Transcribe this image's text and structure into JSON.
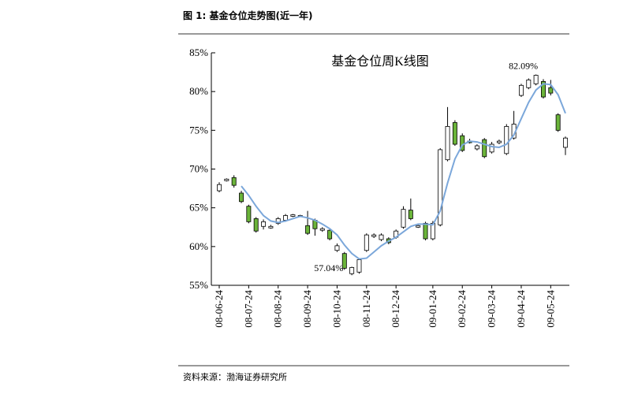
{
  "header": {
    "title": "图 1:  基金仓位走势图(近一年)"
  },
  "source": "资料来源：渤海证券研究所",
  "chart_data": {
    "type": "candlestick",
    "title": "基金仓位周K线图",
    "categories": [
      "08-06-24",
      null,
      null,
      null,
      "08-07-24",
      null,
      null,
      null,
      "08-08-24",
      null,
      null,
      null,
      "08-09-24",
      null,
      null,
      null,
      "08-10-24",
      null,
      null,
      null,
      "08-11-24",
      null,
      null,
      null,
      "08-12-24",
      null,
      null,
      null,
      null,
      "09-01-24",
      null,
      null,
      null,
      "09-02-24",
      null,
      null,
      null,
      "09-03-24",
      null,
      null,
      null,
      "09-04-24",
      null,
      null,
      null,
      "09-05-24",
      null,
      null
    ],
    "open": [
      67.2,
      68.5,
      68.9,
      66.9,
      65.2,
      63.6,
      62.6,
      62.4,
      63.0,
      63.4,
      63.9,
      63.9,
      62.7,
      63.4,
      62.1,
      62.1,
      59.5,
      59.1,
      56.5,
      56.7,
      59.5,
      61.3,
      60.9,
      61.0,
      61.2,
      62.5,
      64.7,
      62.5,
      63.0,
      61.0,
      62.8,
      71.2,
      76.0,
      74.3,
      73.6,
      72.6,
      73.8,
      72.2,
      73.4,
      72.0,
      74.0,
      79.5,
      80.5,
      81.0,
      81.3,
      80.5,
      77.0,
      72.8
    ],
    "high": [
      68.3,
      68.8,
      69.2,
      67.2,
      65.4,
      63.8,
      63.5,
      62.8,
      63.8,
      64.2,
      64.2,
      64.1,
      64.6,
      63.6,
      62.5,
      62.3,
      60.4,
      59.3,
      57.4,
      58.5,
      61.7,
      61.7,
      61.7,
      61.2,
      62.2,
      65.2,
      66.2,
      62.8,
      63.2,
      63.3,
      72.7,
      78.0,
      76.3,
      74.6,
      73.9,
      73.2,
      74.0,
      73.5,
      73.8,
      75.8,
      77.5,
      81.0,
      81.7,
      82.2,
      81.6,
      81.5,
      77.2,
      74.2
    ],
    "low": [
      67.0,
      68.4,
      67.6,
      65.6,
      63.0,
      61.8,
      62.2,
      62.3,
      62.8,
      63.2,
      63.8,
      63.8,
      61.5,
      61.4,
      61.9,
      60.8,
      59.3,
      57.0,
      56.3,
      56.5,
      59.3,
      61.1,
      60.7,
      60.3,
      61.0,
      62.3,
      63.4,
      62.4,
      60.8,
      60.8,
      62.6,
      71.0,
      73.0,
      72.2,
      73.3,
      72.4,
      71.4,
      72.0,
      73.2,
      71.8,
      73.8,
      79.3,
      80.3,
      80.8,
      79.1,
      79.5,
      74.8,
      71.8
    ],
    "close": [
      68.0,
      68.7,
      67.9,
      65.8,
      63.2,
      62.0,
      63.2,
      62.6,
      63.6,
      64.0,
      64.1,
      64.0,
      61.7,
      62.3,
      62.3,
      61.0,
      60.1,
      57.2,
      57.3,
      58.3,
      61.5,
      61.5,
      61.5,
      60.5,
      62.0,
      64.8,
      63.6,
      62.7,
      61.0,
      63.0,
      72.5,
      75.5,
      73.2,
      72.4,
      73.4,
      73.0,
      71.6,
      73.2,
      73.6,
      75.5,
      75.8,
      80.8,
      81.5,
      82.1,
      79.3,
      79.8,
      75.0,
      74.0
    ],
    "ma": [
      null,
      null,
      null,
      67.8,
      66.6,
      65.2,
      64.0,
      63.3,
      63.1,
      63.3,
      63.6,
      63.9,
      63.7,
      63.4,
      62.9,
      62.3,
      61.5,
      60.2,
      59.1,
      58.4,
      58.5,
      59.3,
      60.1,
      60.7,
      61.2,
      61.9,
      62.6,
      62.9,
      62.9,
      62.8,
      64.6,
      68.2,
      71.3,
      73.1,
      73.6,
      73.5,
      73.2,
      72.9,
      72.8,
      73.2,
      74.4,
      76.5,
      78.6,
      80.2,
      81.0,
      80.9,
      79.6,
      77.2
    ],
    "up_color": "#ffffff",
    "down_color": "#6bb43a",
    "ma_color": "#7ba7da",
    "ylim": [
      55,
      85
    ],
    "yticks": [
      {
        "value": 55,
        "label": "55%"
      },
      {
        "value": 60,
        "label": "60%"
      },
      {
        "value": 65,
        "label": "65%"
      },
      {
        "value": 70,
        "label": "70%"
      },
      {
        "value": 75,
        "label": "75%"
      },
      {
        "value": 80,
        "label": "80%"
      },
      {
        "value": 85,
        "label": "85%"
      }
    ],
    "annotations": [
      {
        "text": "82.09%",
        "value": 82.09
      },
      {
        "text": "57.04%",
        "value": 57.04
      }
    ]
  }
}
